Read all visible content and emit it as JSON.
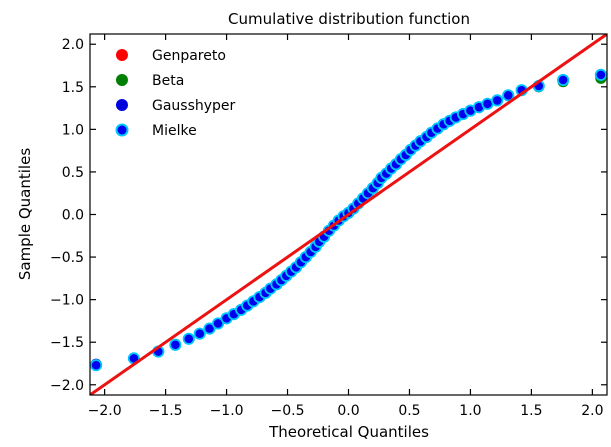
{
  "chart_data": {
    "type": "scatter",
    "title": "Cumulative distribution function",
    "xlabel": "Theoretical Quantiles",
    "ylabel": "Sample Quantiles",
    "xlim": [
      -2.12,
      2.12
    ],
    "ylim": [
      -2.12,
      2.12
    ],
    "xticks": [
      -2.0,
      -1.5,
      -1.0,
      -0.5,
      0.0,
      0.5,
      1.0,
      1.5,
      2.0
    ],
    "yticks": [
      -2.0,
      -1.5,
      -1.0,
      -0.5,
      0.0,
      0.5,
      1.0,
      1.5,
      2.0
    ],
    "xtick_labels": [
      "−2.0",
      "−1.5",
      "−1.0",
      "−0.5",
      "0.0",
      "0.5",
      "1.0",
      "1.5",
      "2.0"
    ],
    "ytick_labels": [
      "−2.0",
      "−1.5",
      "−1.0",
      "−0.5",
      "0.0",
      "0.5",
      "1.0",
      "1.5",
      "2.0"
    ],
    "grid": false,
    "legend_position": "top-left",
    "reference_line": {
      "x": [
        -2.12,
        2.12
      ],
      "y": [
        -2.12,
        2.12
      ],
      "color": "#ee1111"
    },
    "x": [
      -2.07,
      -1.76,
      -1.56,
      -1.42,
      -1.31,
      -1.22,
      -1.14,
      -1.07,
      -1.0,
      -0.94,
      -0.88,
      -0.83,
      -0.78,
      -0.73,
      -0.68,
      -0.64,
      -0.59,
      -0.55,
      -0.51,
      -0.47,
      -0.43,
      -0.39,
      -0.35,
      -0.31,
      -0.27,
      -0.24,
      -0.2,
      -0.16,
      -0.12,
      -0.08,
      -0.04,
      0.0,
      0.04,
      0.08,
      0.12,
      0.16,
      0.2,
      0.24,
      0.27,
      0.31,
      0.35,
      0.39,
      0.43,
      0.47,
      0.51,
      0.55,
      0.59,
      0.64,
      0.68,
      0.73,
      0.78,
      0.83,
      0.88,
      0.94,
      1.0,
      1.07,
      1.14,
      1.22,
      1.31,
      1.42,
      1.56,
      1.76,
      2.07
    ],
    "series": [
      {
        "name": "Genpareto",
        "color": "#ff0000",
        "y": [
          -1.76,
          -1.69,
          -1.61,
          -1.53,
          -1.46,
          -1.4,
          -1.34,
          -1.28,
          -1.22,
          -1.17,
          -1.12,
          -1.07,
          -1.02,
          -0.97,
          -0.92,
          -0.87,
          -0.82,
          -0.77,
          -0.72,
          -0.67,
          -0.62,
          -0.56,
          -0.5,
          -0.44,
          -0.38,
          -0.32,
          -0.26,
          -0.19,
          -0.13,
          -0.07,
          -0.02,
          0.02,
          0.07,
          0.13,
          0.19,
          0.25,
          0.31,
          0.37,
          0.43,
          0.48,
          0.54,
          0.59,
          0.65,
          0.7,
          0.76,
          0.81,
          0.86,
          0.91,
          0.96,
          1.01,
          1.06,
          1.1,
          1.14,
          1.18,
          1.22,
          1.26,
          1.3,
          1.34,
          1.4,
          1.46,
          1.51,
          1.57,
          1.61
        ]
      },
      {
        "name": "Beta",
        "color": "#008000",
        "y": [
          -1.77,
          -1.69,
          -1.61,
          -1.53,
          -1.46,
          -1.4,
          -1.34,
          -1.28,
          -1.22,
          -1.17,
          -1.12,
          -1.07,
          -1.02,
          -0.97,
          -0.92,
          -0.87,
          -0.82,
          -0.77,
          -0.72,
          -0.67,
          -0.62,
          -0.56,
          -0.5,
          -0.44,
          -0.38,
          -0.32,
          -0.26,
          -0.19,
          -0.13,
          -0.07,
          -0.02,
          0.02,
          0.07,
          0.13,
          0.19,
          0.25,
          0.31,
          0.37,
          0.43,
          0.48,
          0.54,
          0.59,
          0.65,
          0.7,
          0.76,
          0.81,
          0.86,
          0.91,
          0.96,
          1.01,
          1.06,
          1.1,
          1.14,
          1.18,
          1.22,
          1.26,
          1.3,
          1.34,
          1.4,
          1.46,
          1.5,
          1.56,
          1.6
        ]
      },
      {
        "name": "Gausshyper",
        "color": "#0000dd",
        "y": [
          -1.76,
          -1.69,
          -1.61,
          -1.53,
          -1.46,
          -1.4,
          -1.34,
          -1.28,
          -1.22,
          -1.17,
          -1.12,
          -1.07,
          -1.02,
          -0.97,
          -0.92,
          -0.87,
          -0.82,
          -0.77,
          -0.72,
          -0.67,
          -0.62,
          -0.56,
          -0.5,
          -0.44,
          -0.38,
          -0.32,
          -0.26,
          -0.19,
          -0.13,
          -0.07,
          -0.02,
          0.02,
          0.07,
          0.13,
          0.19,
          0.25,
          0.31,
          0.37,
          0.43,
          0.48,
          0.54,
          0.59,
          0.65,
          0.7,
          0.76,
          0.81,
          0.86,
          0.91,
          0.96,
          1.01,
          1.06,
          1.1,
          1.14,
          1.18,
          1.22,
          1.26,
          1.3,
          1.34,
          1.4,
          1.46,
          1.51,
          1.58,
          1.64
        ]
      },
      {
        "name": "Mielke",
        "color": "#0000ee",
        "edgecolor": "#00c8ff",
        "y": [
          -1.77,
          -1.69,
          -1.61,
          -1.53,
          -1.46,
          -1.4,
          -1.34,
          -1.28,
          -1.22,
          -1.17,
          -1.12,
          -1.07,
          -1.02,
          -0.97,
          -0.92,
          -0.87,
          -0.82,
          -0.77,
          -0.72,
          -0.67,
          -0.62,
          -0.56,
          -0.5,
          -0.44,
          -0.38,
          -0.32,
          -0.26,
          -0.19,
          -0.13,
          -0.07,
          -0.02,
          0.02,
          0.07,
          0.13,
          0.19,
          0.25,
          0.31,
          0.37,
          0.43,
          0.48,
          0.54,
          0.59,
          0.65,
          0.7,
          0.76,
          0.81,
          0.86,
          0.91,
          0.96,
          1.01,
          1.06,
          1.1,
          1.14,
          1.18,
          1.22,
          1.26,
          1.3,
          1.34,
          1.4,
          1.46,
          1.51,
          1.58,
          1.64
        ]
      }
    ]
  }
}
